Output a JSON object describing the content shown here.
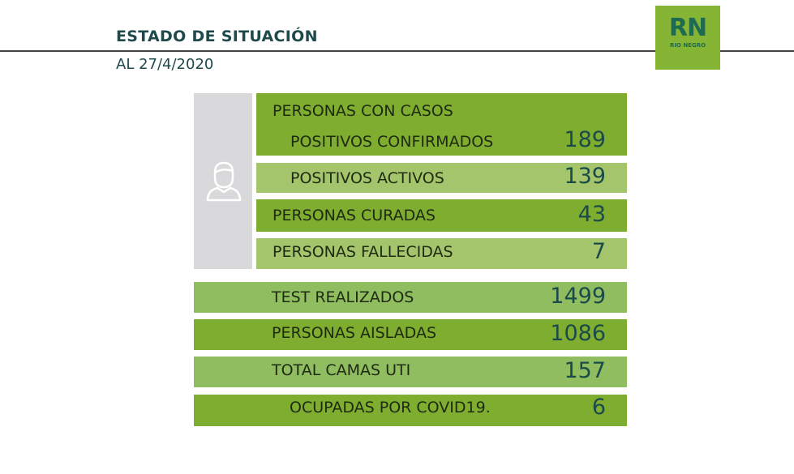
{
  "header": {
    "title": "ESTADO DE SITUACIÓN",
    "date": "AL 27/4/2020"
  },
  "logo": {
    "mark": "RN",
    "name": "RIO NEGRO",
    "color": "#86b535"
  },
  "colors": {
    "dark_green": "#7fad2f",
    "light_green": "#a4c56b",
    "number": "#1b4a4a",
    "title": "#1f4a4c"
  },
  "persons_icon": "user-icon",
  "cases": {
    "heading": "PERSONAS CON CASOS",
    "rows": [
      {
        "label": "POSITIVOS CONFIRMADOS",
        "value": "189"
      },
      {
        "label": "POSITIVOS ACTIVOS",
        "value": "139"
      },
      {
        "label": "PERSONAS CURADAS",
        "value": "43"
      },
      {
        "label": "PERSONAS FALLECIDAS",
        "value": "7"
      }
    ]
  },
  "stats": [
    {
      "label": "TEST REALIZADOS",
      "value": "1499"
    },
    {
      "label": "PERSONAS AISLADAS",
      "value": "1086"
    },
    {
      "label": "TOTAL CAMAS UTI",
      "value": "157"
    },
    {
      "label": "OCUPADAS POR COVID19.",
      "value": "6"
    }
  ]
}
